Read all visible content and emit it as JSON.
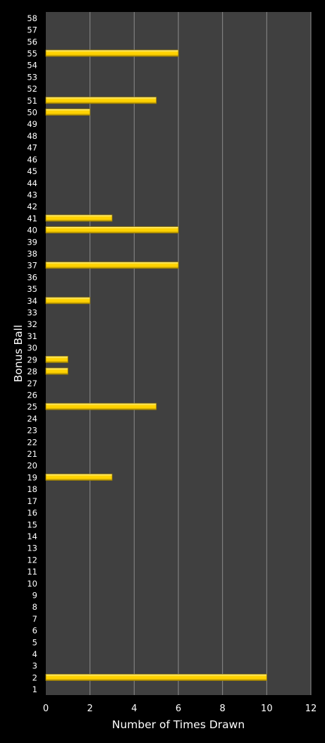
{
  "chart_data": {
    "type": "bar",
    "orientation": "horizontal",
    "title": "",
    "xlabel": "Number of Times Drawn",
    "ylabel": "Bonus Ball",
    "xlim": [
      0,
      12
    ],
    "xticks": [
      0,
      2,
      4,
      6,
      8,
      10,
      12
    ],
    "grid": "vertical",
    "legend": "none",
    "categories": [
      "1",
      "2",
      "3",
      "4",
      "5",
      "6",
      "7",
      "8",
      "9",
      "10",
      "11",
      "12",
      "13",
      "14",
      "15",
      "16",
      "17",
      "18",
      "19",
      "20",
      "21",
      "22",
      "23",
      "24",
      "25",
      "26",
      "27",
      "28",
      "29",
      "30",
      "31",
      "32",
      "33",
      "34",
      "35",
      "36",
      "37",
      "38",
      "39",
      "40",
      "41",
      "42",
      "43",
      "44",
      "45",
      "46",
      "47",
      "48",
      "49",
      "50",
      "51",
      "52",
      "53",
      "54",
      "55",
      "56",
      "57",
      "58"
    ],
    "values": [
      0,
      10,
      0,
      0,
      0,
      0,
      0,
      0,
      0,
      0,
      0,
      0,
      0,
      0,
      0,
      0,
      0,
      0,
      3,
      0,
      0,
      0,
      0,
      0,
      5,
      0,
      0,
      1,
      1,
      0,
      0,
      0,
      0,
      2,
      0,
      0,
      6,
      0,
      0,
      6,
      3,
      0,
      0,
      0,
      0,
      0,
      0,
      0,
      0,
      2,
      5,
      0,
      0,
      0,
      6,
      0,
      0,
      0
    ],
    "colors": {
      "background": "#000000",
      "plot_area": "#404040",
      "gridline": "#8c8c8c",
      "bar_fill": "#ffd200",
      "bar_highlight": "#fff6a0",
      "bar_shadow": "#a08200",
      "text": "#ffffff"
    }
  }
}
